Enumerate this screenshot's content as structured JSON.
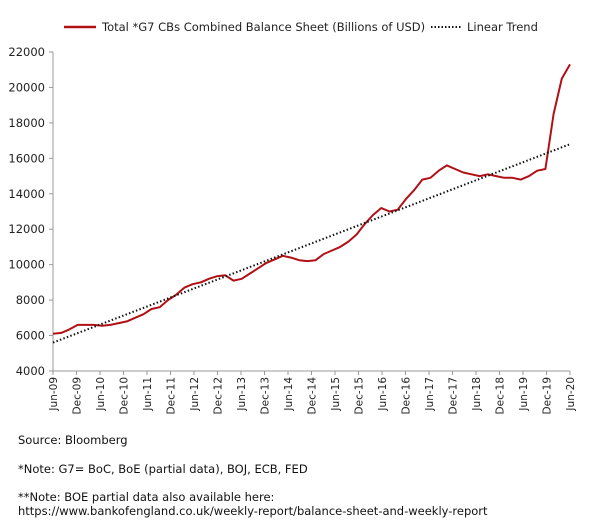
{
  "chart_data": {
    "type": "line",
    "title": "",
    "xlabel": "",
    "ylabel": "",
    "ylim": [
      4000,
      22000
    ],
    "yticks": [
      4000,
      6000,
      8000,
      10000,
      12000,
      14000,
      16000,
      18000,
      20000,
      22000
    ],
    "xticks": [
      "Jun-09",
      "Dec-09",
      "Jun-10",
      "Dec-10",
      "Jun-11",
      "Dec-11",
      "Jun-12",
      "Dec-12",
      "Jun-13",
      "Dec-13",
      "Jun-14",
      "Dec-14",
      "Jun-15",
      "Dec-15",
      "Jun-16",
      "Dec-16",
      "Jun-17",
      "Dec-17",
      "Jun-18",
      "Dec-18",
      "Jun-19",
      "Dec-19",
      "Jun-20"
    ],
    "grid": false,
    "legend_position": "top",
    "series": [
      {
        "name": "Total *G7 CBs Combined Balance Sheet (Billions of USD)",
        "color": "#b01016",
        "style": "solid",
        "points": [
          [
            0,
            6100
          ],
          [
            1,
            6150
          ],
          [
            2,
            6350
          ],
          [
            3,
            6600
          ],
          [
            4,
            6600
          ],
          [
            5,
            6600
          ],
          [
            6,
            6550
          ],
          [
            7,
            6600
          ],
          [
            8,
            6700
          ],
          [
            9,
            6800
          ],
          [
            10,
            7000
          ],
          [
            11,
            7200
          ],
          [
            12,
            7500
          ],
          [
            13,
            7600
          ],
          [
            14,
            8000
          ],
          [
            15,
            8300
          ],
          [
            16,
            8700
          ],
          [
            17,
            8900
          ],
          [
            18,
            9000
          ],
          [
            19,
            9200
          ],
          [
            20,
            9350
          ],
          [
            21,
            9400
          ],
          [
            22,
            9100
          ],
          [
            23,
            9200
          ],
          [
            24,
            9500
          ],
          [
            25,
            9800
          ],
          [
            26,
            10100
          ],
          [
            27,
            10300
          ],
          [
            28,
            10500
          ],
          [
            29,
            10400
          ],
          [
            30,
            10250
          ],
          [
            31,
            10200
          ],
          [
            32,
            10250
          ],
          [
            33,
            10600
          ],
          [
            34,
            10800
          ],
          [
            35,
            11000
          ],
          [
            36,
            11300
          ],
          [
            37,
            11700
          ],
          [
            38,
            12300
          ],
          [
            39,
            12800
          ],
          [
            40,
            13200
          ],
          [
            41,
            13000
          ],
          [
            42,
            13100
          ],
          [
            43,
            13700
          ],
          [
            44,
            14200
          ],
          [
            45,
            14800
          ],
          [
            46,
            14900
          ],
          [
            47,
            15300
          ],
          [
            48,
            15600
          ],
          [
            49,
            15400
          ],
          [
            50,
            15200
          ],
          [
            51,
            15100
          ],
          [
            52,
            15000
          ],
          [
            53,
            15100
          ],
          [
            54,
            15000
          ],
          [
            55,
            14900
          ],
          [
            56,
            14900
          ],
          [
            57,
            14800
          ],
          [
            58,
            15000
          ],
          [
            59,
            15300
          ],
          [
            60,
            15400
          ],
          [
            61,
            18500
          ],
          [
            62,
            20500
          ],
          [
            63,
            21300
          ]
        ]
      },
      {
        "name": "Linear Trend",
        "color": "#111111",
        "style": "dotted",
        "points": [
          [
            0,
            5600
          ],
          [
            63,
            16800
          ]
        ]
      }
    ]
  },
  "notes": {
    "source": "Source: Bloomberg",
    "note1": "*Note: G7= BoC, BoE (partial data), BOJ, ECB, FED",
    "note2_line1": "**Note: BOE partial data also available here:",
    "note2_line2": "https://www.bankofengland.co.uk/weekly-report/balance-sheet-and-weekly-report"
  }
}
